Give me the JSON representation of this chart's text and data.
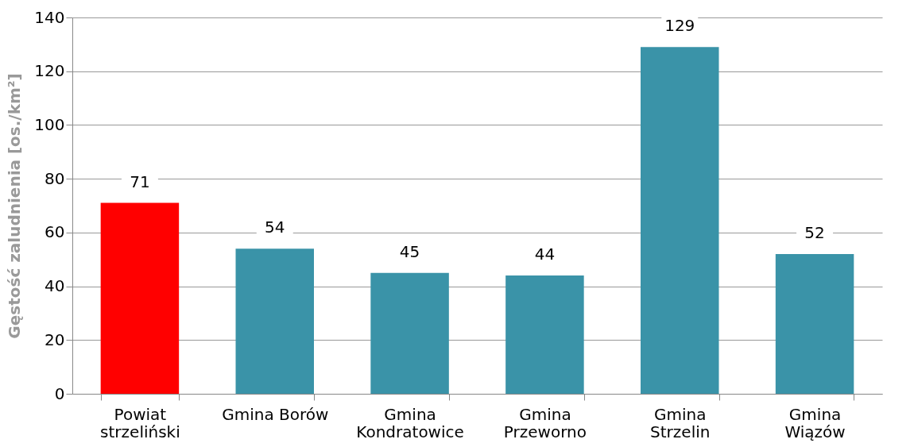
{
  "chart_data": {
    "type": "bar",
    "ylabel": "Gęstość zaludnienia [os./km²]",
    "categories": [
      "Powiat\nstrzeliński",
      "Gmina Borów",
      "Gmina\nKondratowice",
      "Gmina\nPrzeworno",
      "Gmina\nStrzelin",
      "Gmina\nWiązów"
    ],
    "values": [
      71,
      54,
      45,
      44,
      129,
      52
    ],
    "colors": [
      "#ff0000",
      "#3a93a8",
      "#3a93a8",
      "#3a93a8",
      "#3a93a8",
      "#3a93a8"
    ],
    "ylim": [
      0,
      140
    ],
    "yticks": [
      0,
      20,
      40,
      60,
      80,
      100,
      120,
      140
    ],
    "grid": "y",
    "data_labels": true
  }
}
